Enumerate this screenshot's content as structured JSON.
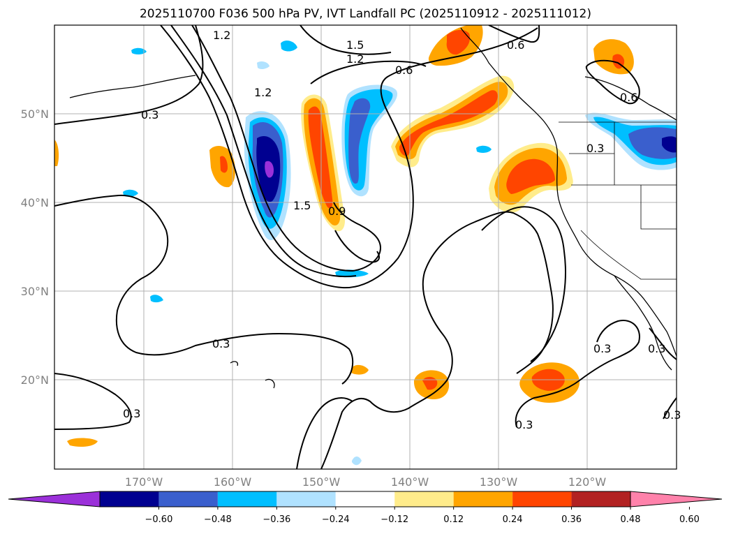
{
  "title": "2025110700 F036 500 hPa PV, IVT Landfall PC (2025110912 - 2025111012)",
  "longitude_labels": [
    "170°W",
    "160°W",
    "150°W",
    "140°W",
    "130°W",
    "120°W"
  ],
  "latitude_labels": [
    "50°N",
    "40°N",
    "30°N",
    "20°N"
  ],
  "colorbar": {
    "colors": [
      "#9b30d9",
      "#000090",
      "#3a5fcd",
      "#00bfff",
      "#b0e2ff",
      "#ffffff",
      "#ffec8b",
      "#ffa500",
      "#ff4500",
      "#b22222",
      "#ff82ab"
    ],
    "tick_labels": [
      "−0.60",
      "−0.48",
      "−0.36",
      "−0.24",
      "−0.12",
      "0.12",
      "0.24",
      "0.36",
      "0.48",
      "0.60"
    ]
  },
  "contour_labels": [
    {
      "id": "c1",
      "text": "1.2"
    },
    {
      "id": "c2",
      "text": "1.5"
    },
    {
      "id": "c3",
      "text": "1.2"
    },
    {
      "id": "c4",
      "text": "0.6"
    },
    {
      "id": "c5",
      "text": "0.6"
    },
    {
      "id": "c6",
      "text": "0.3"
    },
    {
      "id": "c7",
      "text": "1.2"
    },
    {
      "id": "c8",
      "text": "1.5"
    },
    {
      "id": "c9",
      "text": "0.9"
    },
    {
      "id": "c10",
      "text": "0.6"
    },
    {
      "id": "c11",
      "text": "0.3"
    },
    {
      "id": "c12",
      "text": "0.3"
    },
    {
      "id": "c13",
      "text": "0.3"
    },
    {
      "id": "c14",
      "text": "0.3"
    },
    {
      "id": "c15",
      "text": "0.3"
    },
    {
      "id": "c16",
      "text": "0.3"
    },
    {
      "id": "c17",
      "text": "0.3"
    }
  ]
}
